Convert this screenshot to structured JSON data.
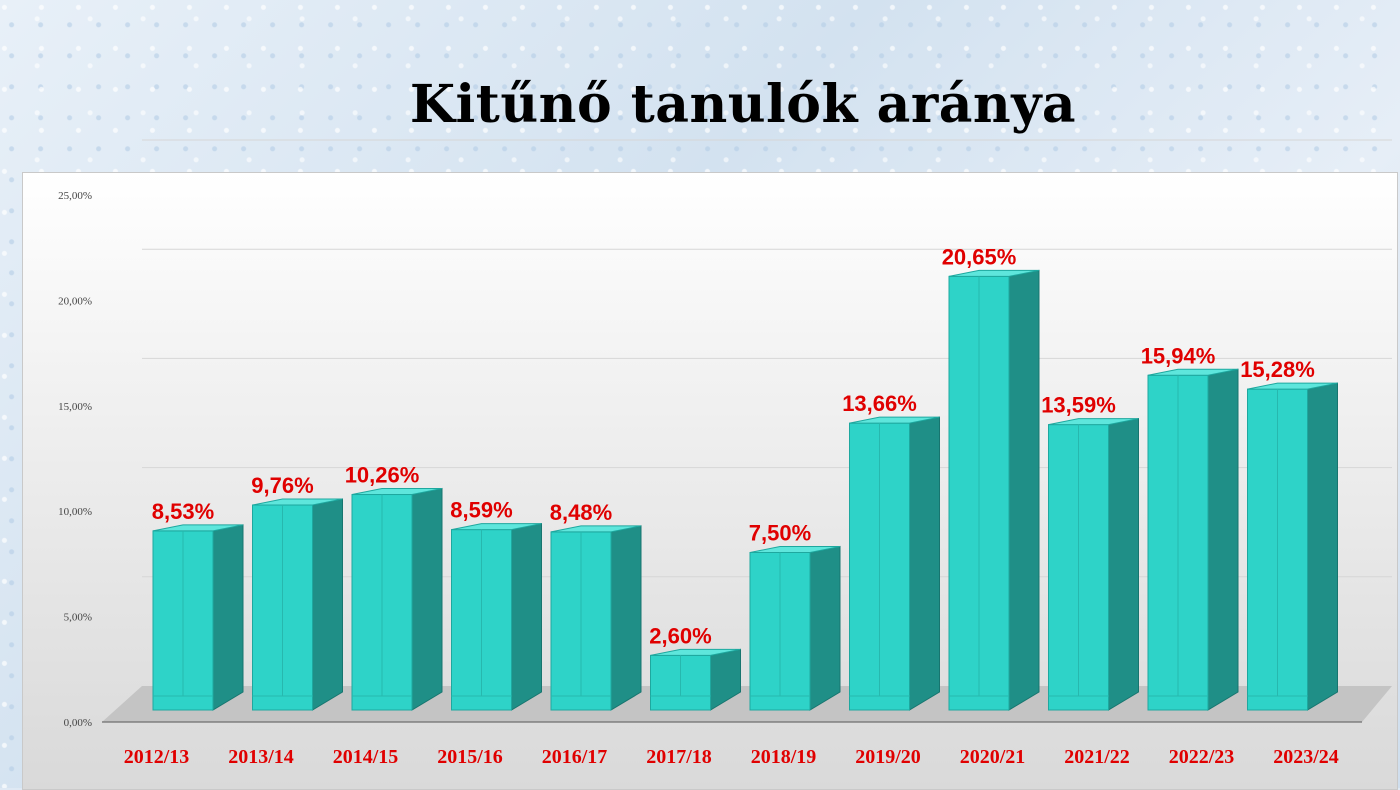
{
  "chart_data": {
    "type": "bar",
    "title": "Kitűnő tanulók aránya",
    "categories": [
      "2012/13",
      "2013/14",
      "2014/15",
      "2015/16",
      "2016/17",
      "2017/18",
      "2018/19",
      "2019/20",
      "2020/21",
      "2021/22",
      "2022/23",
      "2023/24"
    ],
    "values": [
      8.53,
      9.76,
      10.26,
      8.59,
      8.48,
      2.6,
      7.5,
      13.66,
      20.65,
      13.59,
      15.94,
      15.28
    ],
    "data_labels": [
      "8,53%",
      "9,76%",
      "10,26%",
      "8,59%",
      "8,48%",
      "2,60%",
      "7,50%",
      "13,66%",
      "20,65%",
      "13,59%",
      "15,94%",
      "15,28%"
    ],
    "y_ticks": [
      {
        "value": 0,
        "label": "0,00%"
      },
      {
        "value": 5,
        "label": "5,00%"
      },
      {
        "value": 10,
        "label": "10,00%"
      },
      {
        "value": 15,
        "label": "15,00%"
      },
      {
        "value": 20,
        "label": "20,00%"
      },
      {
        "value": 25,
        "label": "25,00%"
      }
    ],
    "ylim": [
      0,
      25
    ],
    "grid": true,
    "legend": "none",
    "style": "3d-column",
    "colors": {
      "bar": "#2ed3c8",
      "bar_side": "#1f8f87",
      "label": "#e00000"
    }
  }
}
